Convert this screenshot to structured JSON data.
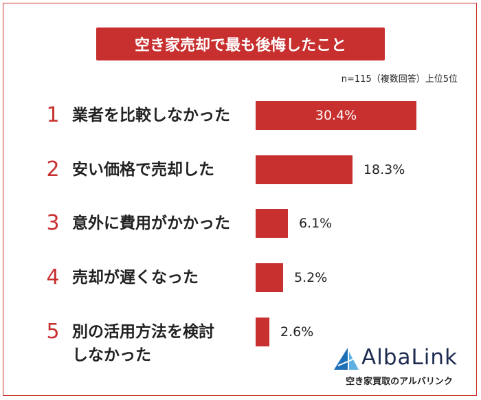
{
  "chart_data": {
    "type": "bar",
    "orientation": "horizontal",
    "title": "空き家売却で最も後悔したこと",
    "subtitle": "n=115（複数回答）上位5位",
    "ranks": [
      "1",
      "2",
      "3",
      "4",
      "5"
    ],
    "categories": [
      "業者を比較しなかった",
      "安い価格で売却した",
      "意外に費用がかかった",
      "売却が遅くなった",
      "別の活用方法を検討\nしなかった"
    ],
    "values": [
      30.4,
      18.3,
      6.1,
      5.2,
      2.6
    ],
    "value_labels": [
      "30.4%",
      "18.3%",
      "6.1%",
      "5.2%",
      "2.6%"
    ],
    "color": "#c7302f",
    "logo": {
      "name": "AlbaLink",
      "tagline": "空き家買取のアルバリンク"
    }
  }
}
